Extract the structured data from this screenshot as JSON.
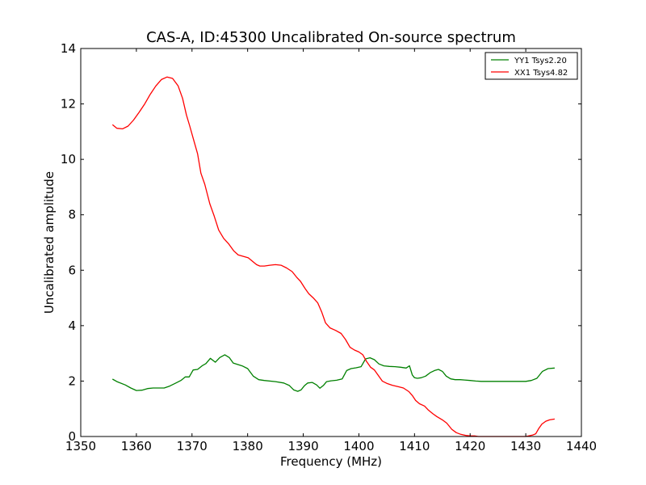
{
  "chart_data": {
    "type": "line",
    "title": "CAS-A, ID:45300 Uncalibrated On-source spectrum",
    "xlabel": "Frequency (MHz)",
    "ylabel": "Uncalibrated amplitude",
    "xlim": [
      1350,
      1440
    ],
    "ylim": [
      0,
      14
    ],
    "xticks": [
      1350,
      1360,
      1370,
      1380,
      1390,
      1400,
      1410,
      1420,
      1430,
      1440
    ],
    "yticks": [
      0,
      2,
      4,
      6,
      8,
      10,
      12,
      14
    ],
    "grid": false,
    "legend_position": "top-right",
    "series": [
      {
        "name": "YY1 Tsys2.20",
        "color": "#008000",
        "x": [
          1355.7,
          1356.5,
          1358,
          1359,
          1360,
          1361,
          1362,
          1363,
          1365,
          1366,
          1367,
          1368,
          1368.8,
          1369.5,
          1370.2,
          1371,
          1371.8,
          1372.5,
          1373.3,
          1374.2,
          1375,
          1375.9,
          1376.7,
          1377.4,
          1378.2,
          1379,
          1380,
          1381,
          1382,
          1383,
          1385,
          1386.5,
          1387.5,
          1388.3,
          1389,
          1389.6,
          1390.2,
          1390.8,
          1391.6,
          1392.4,
          1393,
          1393.6,
          1394.2,
          1395,
          1396,
          1397,
          1397.8,
          1398.6,
          1399.5,
          1400.4,
          1401.2,
          1402,
          1402.8,
          1403.6,
          1404.5,
          1405.5,
          1406.5,
          1407.5,
          1408.5,
          1409.1,
          1409.6,
          1410,
          1410.5,
          1411.2,
          1412,
          1412.8,
          1413.6,
          1414.3,
          1415,
          1415.7,
          1416.5,
          1417.3,
          1418.2,
          1419,
          1420,
          1421,
          1422,
          1424,
          1426,
          1428,
          1430,
          1431,
          1432,
          1433,
          1434,
          1435.2
        ],
        "y": [
          2.07,
          1.98,
          1.86,
          1.75,
          1.66,
          1.67,
          1.73,
          1.75,
          1.75,
          1.82,
          1.92,
          2.02,
          2.15,
          2.15,
          2.4,
          2.42,
          2.55,
          2.63,
          2.82,
          2.68,
          2.85,
          2.95,
          2.85,
          2.65,
          2.6,
          2.55,
          2.45,
          2.18,
          2.05,
          2.02,
          1.98,
          1.93,
          1.84,
          1.68,
          1.63,
          1.68,
          1.83,
          1.93,
          1.95,
          1.86,
          1.74,
          1.84,
          1.98,
          2.01,
          2.03,
          2.08,
          2.38,
          2.45,
          2.48,
          2.52,
          2.8,
          2.84,
          2.77,
          2.62,
          2.55,
          2.53,
          2.52,
          2.5,
          2.47,
          2.55,
          2.22,
          2.12,
          2.1,
          2.12,
          2.18,
          2.3,
          2.38,
          2.42,
          2.35,
          2.18,
          2.08,
          2.05,
          2.05,
          2.04,
          2.02,
          2.0,
          1.99,
          1.99,
          1.99,
          1.99,
          1.99,
          2.02,
          2.1,
          2.35,
          2.45,
          2.47
        ]
      },
      {
        "name": "XX1 Tsys4.82",
        "color": "#ff0000",
        "x": [
          1355.7,
          1356.5,
          1357.5,
          1358.5,
          1359.5,
          1360.5,
          1361.5,
          1362.5,
          1363.5,
          1364.5,
          1365.5,
          1366.5,
          1367.5,
          1368.3,
          1369,
          1369.6,
          1370.3,
          1371,
          1371.6,
          1372.3,
          1373.2,
          1374,
          1374.8,
          1375.7,
          1376.6,
          1377.5,
          1378.3,
          1379.2,
          1380.1,
          1381,
          1381.6,
          1382.2,
          1383,
          1384,
          1385,
          1386,
          1387,
          1388,
          1388.8,
          1389.5,
          1390.3,
          1391,
          1391.8,
          1392.6,
          1393.3,
          1394,
          1394.8,
          1395.8,
          1396.8,
          1397.6,
          1398.4,
          1399.2,
          1400,
          1400.7,
          1401.4,
          1402.1,
          1402.8,
          1403.5,
          1404.2,
          1405,
          1406,
          1407,
          1408,
          1409,
          1409.6,
          1410.2,
          1410.9,
          1411.8,
          1412.5,
          1413.3,
          1414,
          1415,
          1415.8,
          1416.7,
          1417.5,
          1418.3,
          1419.2,
          1420,
          1420.8,
          1421.5,
          1423,
          1425,
          1428,
          1430,
          1431.2,
          1431.8,
          1432.3,
          1432.9,
          1433.6,
          1434.3,
          1435.2
        ],
        "y": [
          11.25,
          11.12,
          11.1,
          11.2,
          11.42,
          11.7,
          12.0,
          12.35,
          12.65,
          12.88,
          12.97,
          12.92,
          12.65,
          12.2,
          11.6,
          11.2,
          10.7,
          10.2,
          9.5,
          9.1,
          8.4,
          7.95,
          7.45,
          7.15,
          6.95,
          6.7,
          6.55,
          6.5,
          6.45,
          6.3,
          6.2,
          6.15,
          6.15,
          6.18,
          6.2,
          6.18,
          6.08,
          5.95,
          5.75,
          5.6,
          5.35,
          5.15,
          5.0,
          4.82,
          4.5,
          4.1,
          3.92,
          3.83,
          3.72,
          3.5,
          3.22,
          3.12,
          3.05,
          2.95,
          2.7,
          2.5,
          2.4,
          2.2,
          2.0,
          1.92,
          1.85,
          1.8,
          1.75,
          1.62,
          1.48,
          1.3,
          1.18,
          1.1,
          0.95,
          0.82,
          0.72,
          0.6,
          0.48,
          0.26,
          0.14,
          0.08,
          0.04,
          0.02,
          0.02,
          0.0,
          0.0,
          0.0,
          0.0,
          0.0,
          0.05,
          0.1,
          0.28,
          0.45,
          0.55,
          0.6,
          0.63
        ]
      }
    ]
  }
}
